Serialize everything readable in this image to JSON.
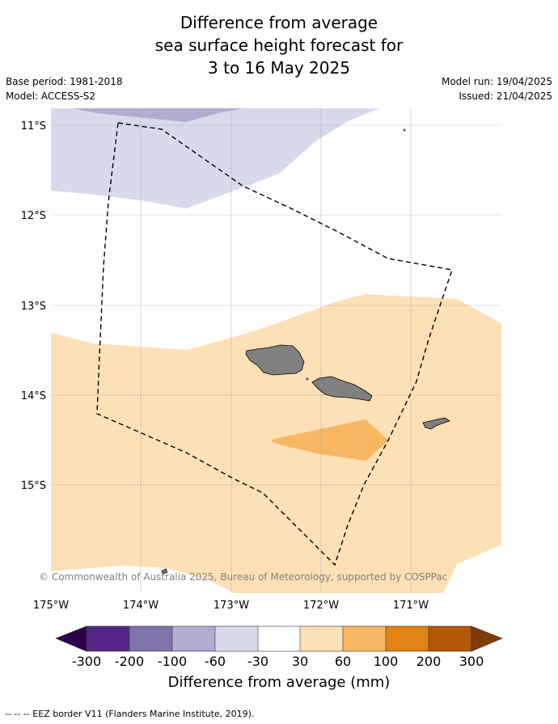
{
  "title": {
    "line1": "Difference from average",
    "line2": "sea surface height forecast for",
    "line3": "3 to 16 May 2025"
  },
  "meta": {
    "base_period": "Base period: 1981-2018",
    "model": "Model: ACCESS-S2",
    "model_run": "Model run: 19/04/2025",
    "issued": "Issued: 21/04/2025"
  },
  "map": {
    "lat_labels": [
      "11°S",
      "12°S",
      "13°S",
      "14°S",
      "15°S"
    ],
    "lon_labels": [
      "175°W",
      "174°W",
      "173°W",
      "172°W",
      "171°W"
    ],
    "copyright": "© Commonwealth of Australia 2025, Bureau of Meteorology, supported by COSPPac",
    "land_color": "#808080"
  },
  "legend": {
    "title": "Difference from average (mm)",
    "ticks": [
      "-300",
      "-200",
      "-100",
      "-60",
      "-30",
      "30",
      "60",
      "100",
      "200",
      "300"
    ],
    "colors": [
      "#2d004b",
      "#542788",
      "#8073ac",
      "#b2abd2",
      "#d8daeb",
      "#ffffff",
      "#fee0b6",
      "#f9b763",
      "#e08214",
      "#b35806",
      "#7f3b08"
    ]
  },
  "footer": {
    "eez_note": "--  --  -- EEZ border V11 (Flanders Marine Institute, 2019)."
  }
}
